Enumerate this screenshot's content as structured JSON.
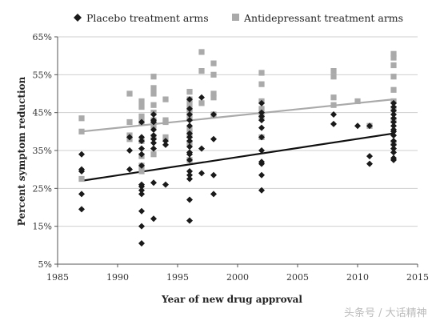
{
  "chart_data": {
    "type": "scatter",
    "title": "",
    "xlabel": "Year of new drug approval",
    "ylabel": "Percent symptom reduction",
    "xlim": [
      1985,
      2015
    ],
    "ylim": [
      5,
      65
    ],
    "xticks": [
      1985,
      1990,
      1995,
      2000,
      2005,
      2010,
      2015
    ],
    "yticks": [
      5,
      15,
      25,
      35,
      45,
      55,
      65
    ],
    "ytick_labels": [
      "5%",
      "15%",
      "25%",
      "35%",
      "45%",
      "55%",
      "65%"
    ],
    "grid": "horizontal",
    "legend_placement": "top",
    "series": [
      {
        "name": "Placebo treatment arms",
        "marker": "diamond",
        "color": "#1a1a1a",
        "trendline": {
          "x": [
            1987,
            2013
          ],
          "y": [
            27,
            39.5
          ]
        },
        "points": [
          [
            1987,
            19.5
          ],
          [
            1987,
            23.5
          ],
          [
            1987,
            29.5
          ],
          [
            1987,
            30
          ],
          [
            1987,
            34
          ],
          [
            1991,
            30
          ],
          [
            1991,
            35
          ],
          [
            1991,
            38.5
          ],
          [
            1992,
            10.5
          ],
          [
            1992,
            15
          ],
          [
            1992,
            19
          ],
          [
            1992,
            23.5
          ],
          [
            1992,
            24.5
          ],
          [
            1992,
            25.5
          ],
          [
            1992,
            26
          ],
          [
            1992,
            31
          ],
          [
            1992,
            34
          ],
          [
            1992,
            35.5
          ],
          [
            1992,
            37.5
          ],
          [
            1992,
            38.5
          ],
          [
            1992,
            42.5
          ],
          [
            1993,
            17
          ],
          [
            1993,
            26.5
          ],
          [
            1993,
            35.5
          ],
          [
            1993,
            37
          ],
          [
            1993,
            38
          ],
          [
            1993,
            39
          ],
          [
            1993,
            40.5
          ],
          [
            1993,
            42.5
          ],
          [
            1993,
            43
          ],
          [
            1993,
            44.5
          ],
          [
            1994,
            26
          ],
          [
            1994,
            36.5
          ],
          [
            1994,
            37.5
          ],
          [
            1996,
            16.5
          ],
          [
            1996,
            22
          ],
          [
            1996,
            27.5
          ],
          [
            1996,
            28.5
          ],
          [
            1996,
            29.5
          ],
          [
            1996,
            32.5
          ],
          [
            1996,
            34
          ],
          [
            1996,
            34.5
          ],
          [
            1996,
            36
          ],
          [
            1996,
            37.5
          ],
          [
            1996,
            38.5
          ],
          [
            1996,
            39.5
          ],
          [
            1996,
            41.5
          ],
          [
            1996,
            43
          ],
          [
            1996,
            44.5
          ],
          [
            1996,
            46
          ],
          [
            1996,
            48.5
          ],
          [
            1997,
            29
          ],
          [
            1997,
            35.5
          ],
          [
            1997,
            49
          ],
          [
            1998,
            23.5
          ],
          [
            1998,
            28.5
          ],
          [
            1998,
            38
          ],
          [
            1998,
            44.5
          ],
          [
            2002,
            24.5
          ],
          [
            2002,
            28.5
          ],
          [
            2002,
            31.5
          ],
          [
            2002,
            32
          ],
          [
            2002,
            35
          ],
          [
            2002,
            38.5
          ],
          [
            2002,
            41
          ],
          [
            2002,
            43
          ],
          [
            2002,
            44
          ],
          [
            2002,
            45
          ],
          [
            2002,
            47.5
          ],
          [
            2008,
            42
          ],
          [
            2008,
            44.5
          ],
          [
            2010,
            41.5
          ],
          [
            2011,
            31.5
          ],
          [
            2011,
            33.5
          ],
          [
            2011,
            41.5
          ],
          [
            2013,
            32.5
          ],
          [
            2013,
            33
          ],
          [
            2013,
            34.5
          ],
          [
            2013,
            35.5
          ],
          [
            2013,
            36.5
          ],
          [
            2013,
            37.5
          ],
          [
            2013,
            39
          ],
          [
            2013,
            40
          ],
          [
            2013,
            40.5
          ],
          [
            2013,
            41.5
          ],
          [
            2013,
            42.5
          ],
          [
            2013,
            43.5
          ],
          [
            2013,
            44.5
          ],
          [
            2013,
            45.5
          ],
          [
            2013,
            46.5
          ],
          [
            2013,
            47.5
          ]
        ]
      },
      {
        "name": "Antidepressant treatment arms",
        "marker": "square",
        "color": "#aaaaaa",
        "trendline": {
          "x": [
            1987,
            2013
          ],
          "y": [
            40,
            48.5
          ]
        },
        "points": [
          [
            1987,
            27.5
          ],
          [
            1987,
            40
          ],
          [
            1987,
            43.5
          ],
          [
            1991,
            38
          ],
          [
            1991,
            39
          ],
          [
            1991,
            42.5
          ],
          [
            1991,
            50
          ],
          [
            1992,
            29.5
          ],
          [
            1992,
            31
          ],
          [
            1992,
            33.5
          ],
          [
            1992,
            37.5
          ],
          [
            1992,
            42.5
          ],
          [
            1992,
            44
          ],
          [
            1992,
            46.5
          ],
          [
            1992,
            48
          ],
          [
            1993,
            34
          ],
          [
            1993,
            38.5
          ],
          [
            1993,
            41.5
          ],
          [
            1993,
            43
          ],
          [
            1993,
            45
          ],
          [
            1993,
            47
          ],
          [
            1993,
            50
          ],
          [
            1993,
            51.5
          ],
          [
            1993,
            54.5
          ],
          [
            1994,
            38.5
          ],
          [
            1994,
            42.5
          ],
          [
            1994,
            43
          ],
          [
            1994,
            48.5
          ],
          [
            1996,
            32.5
          ],
          [
            1996,
            37
          ],
          [
            1996,
            39
          ],
          [
            1996,
            40.5
          ],
          [
            1996,
            43.5
          ],
          [
            1996,
            45
          ],
          [
            1996,
            46
          ],
          [
            1996,
            47.5
          ],
          [
            1996,
            48.5
          ],
          [
            1996,
            50.5
          ],
          [
            1997,
            47.5
          ],
          [
            1997,
            56
          ],
          [
            1997,
            61
          ],
          [
            1998,
            44.5
          ],
          [
            1998,
            49
          ],
          [
            1998,
            50
          ],
          [
            1998,
            55
          ],
          [
            1998,
            58
          ],
          [
            2002,
            38.5
          ],
          [
            2002,
            44
          ],
          [
            2002,
            46
          ],
          [
            2002,
            48
          ],
          [
            2002,
            52.5
          ],
          [
            2002,
            55.5
          ],
          [
            2008,
            47
          ],
          [
            2008,
            49
          ],
          [
            2008,
            54.5
          ],
          [
            2008,
            56
          ],
          [
            2010,
            48
          ],
          [
            2011,
            41.5
          ],
          [
            2013,
            37
          ],
          [
            2013,
            43
          ],
          [
            2013,
            46
          ],
          [
            2013,
            48
          ],
          [
            2013,
            51
          ],
          [
            2013,
            54.5
          ],
          [
            2013,
            57.5
          ],
          [
            2013,
            59.5
          ],
          [
            2013,
            60.5
          ]
        ]
      }
    ]
  },
  "watermark": "头条号 / 大话精神"
}
